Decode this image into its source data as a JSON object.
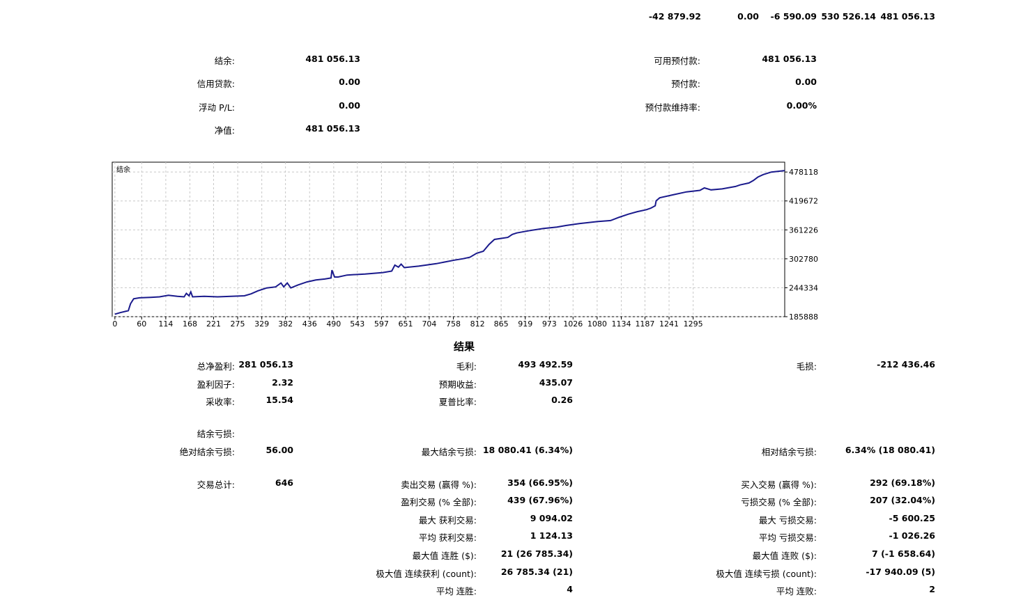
{
  "top_totals": [
    "-42 879.92",
    "0.00",
    "-6 590.09",
    "530 526.14",
    "481 056.13"
  ],
  "summary": {
    "balance_label": "结余:",
    "balance_value": "481 056.13",
    "credit_label": "信用贷款:",
    "credit_value": "0.00",
    "floating_label": "浮动 P/L:",
    "floating_value": "0.00",
    "equity_label": "净值:",
    "equity_value": "481 056.13",
    "free_margin_label": "可用预付款:",
    "free_margin_value": "481 056.13",
    "margin_label": "预付款:",
    "margin_value": "0.00",
    "margin_level_label": "预付款维持率:",
    "margin_level_value": "0.00%"
  },
  "chart_data": {
    "type": "line",
    "title": "结余",
    "series": [
      {
        "name": "结余",
        "color": "#1a1a8c",
        "points": [
          [
            0,
            191000
          ],
          [
            12,
            194000
          ],
          [
            30,
            198000
          ],
          [
            35,
            212000
          ],
          [
            42,
            222000
          ],
          [
            55,
            224000
          ],
          [
            80,
            225000
          ],
          [
            100,
            226000
          ],
          [
            120,
            229000
          ],
          [
            140,
            227000
          ],
          [
            155,
            226000
          ],
          [
            160,
            233000
          ],
          [
            166,
            228000
          ],
          [
            170,
            236000
          ],
          [
            174,
            226000
          ],
          [
            200,
            227000
          ],
          [
            230,
            226000
          ],
          [
            260,
            227000
          ],
          [
            290,
            228000
          ],
          [
            305,
            232000
          ],
          [
            320,
            238000
          ],
          [
            340,
            244000
          ],
          [
            360,
            246000
          ],
          [
            372,
            254000
          ],
          [
            378,
            246000
          ],
          [
            386,
            254000
          ],
          [
            394,
            244000
          ],
          [
            410,
            250000
          ],
          [
            430,
            256000
          ],
          [
            450,
            260000
          ],
          [
            470,
            262000
          ],
          [
            484,
            264000
          ],
          [
            486,
            280000
          ],
          [
            492,
            266000
          ],
          [
            500,
            266000
          ],
          [
            520,
            270000
          ],
          [
            560,
            272000
          ],
          [
            600,
            275000
          ],
          [
            620,
            278000
          ],
          [
            627,
            290000
          ],
          [
            635,
            286000
          ],
          [
            641,
            292000
          ],
          [
            648,
            285000
          ],
          [
            680,
            288000
          ],
          [
            720,
            293000
          ],
          [
            760,
            300000
          ],
          [
            780,
            303000
          ],
          [
            795,
            306000
          ],
          [
            810,
            314000
          ],
          [
            825,
            318000
          ],
          [
            838,
            332000
          ],
          [
            850,
            342000
          ],
          [
            880,
            346000
          ],
          [
            890,
            352000
          ],
          [
            900,
            355000
          ],
          [
            930,
            360000
          ],
          [
            960,
            364000
          ],
          [
            990,
            367000
          ],
          [
            1010,
            370000
          ],
          [
            1040,
            374000
          ],
          [
            1080,
            378000
          ],
          [
            1110,
            380000
          ],
          [
            1130,
            387000
          ],
          [
            1150,
            393000
          ],
          [
            1170,
            398000
          ],
          [
            1190,
            402000
          ],
          [
            1200,
            405000
          ],
          [
            1210,
            410000
          ],
          [
            1212,
            420000
          ],
          [
            1220,
            426000
          ],
          [
            1250,
            432000
          ],
          [
            1280,
            438000
          ],
          [
            1310,
            441000
          ],
          [
            1320,
            446000
          ],
          [
            1335,
            442000
          ],
          [
            1360,
            444000
          ],
          [
            1390,
            449000
          ],
          [
            1400,
            452000
          ],
          [
            1420,
            456000
          ],
          [
            1430,
            461000
          ],
          [
            1440,
            468000
          ],
          [
            1452,
            473000
          ],
          [
            1470,
            478000
          ],
          [
            1500,
            481056
          ]
        ]
      }
    ],
    "y_ticks": [
      185888,
      244334,
      302780,
      361226,
      419672,
      478118
    ],
    "x_ticks": [
      0,
      60,
      114,
      168,
      221,
      275,
      329,
      382,
      436,
      490,
      543,
      597,
      651,
      704,
      758,
      812,
      865,
      919,
      973,
      1026,
      1080,
      1134,
      1187,
      1241,
      1295
    ],
    "ylim": [
      185888,
      498000
    ],
    "xlim": [
      -6,
      1500
    ],
    "grid": true
  },
  "results": {
    "title": "结果",
    "net_profit_label": "总净盈利:",
    "net_profit": "281 056.13",
    "gross_profit_label": "毛利:",
    "gross_profit": "493 492.59",
    "gross_loss_label": "毛损:",
    "gross_loss": "-212 436.46",
    "profit_factor_label": "盈利因子:",
    "profit_factor": "2.32",
    "expected_payoff_label": "预期收益:",
    "expected_payoff": "435.07",
    "recovery_label": "采收率:",
    "recovery": "15.54",
    "sharpe_label": "夏普比率:",
    "sharpe": "0.26",
    "balance_dd_label": "结余亏损:",
    "abs_dd_label": "绝对结余亏损:",
    "abs_dd": "56.00",
    "max_dd_label": "最大结余亏损:",
    "max_dd": "18 080.41 (6.34%)",
    "rel_dd_label": "相对结余亏损:",
    "rel_dd": "6.34% (18 080.41)",
    "total_trades_label": "交易总计:",
    "total_trades": "646",
    "short_label": "卖出交易 (赢得 %):",
    "short": "354 (66.95%)",
    "long_label": "买入交易 (赢得 %):",
    "long": "292 (69.18%)",
    "profit_trades_label": "盈利交易 (% 全部):",
    "profit_trades": "439 (67.96%)",
    "loss_trades_label": "亏损交易 (% 全部):",
    "loss_trades": "207 (32.04%)",
    "largest_profit_label": "最大 获利交易:",
    "largest_profit": "9 094.02",
    "largest_loss_label": "最大 亏损交易:",
    "largest_loss": "-5 600.25",
    "avg_profit_label": "平均 获利交易:",
    "avg_profit": "1 124.13",
    "avg_loss_label": "平均 亏损交易:",
    "avg_loss": "-1 026.26",
    "max_consec_wins_label": "最大值 连胜 ($):",
    "max_consec_wins": "21 (26 785.34)",
    "max_consec_losses_label": "最大值 连败 ($):",
    "max_consec_losses": "7 (-1 658.64)",
    "max_consec_profit_label": "极大值 连续获利 (count):",
    "max_consec_profit": "26 785.34 (21)",
    "max_consec_loss_label": "极大值 连续亏损 (count):",
    "max_consec_loss": "-17 940.09 (5)",
    "avg_consec_wins_label": "平均 连胜:",
    "avg_consec_wins": "4",
    "avg_consec_losses_label": "平均 连败:",
    "avg_consec_losses": "2"
  }
}
